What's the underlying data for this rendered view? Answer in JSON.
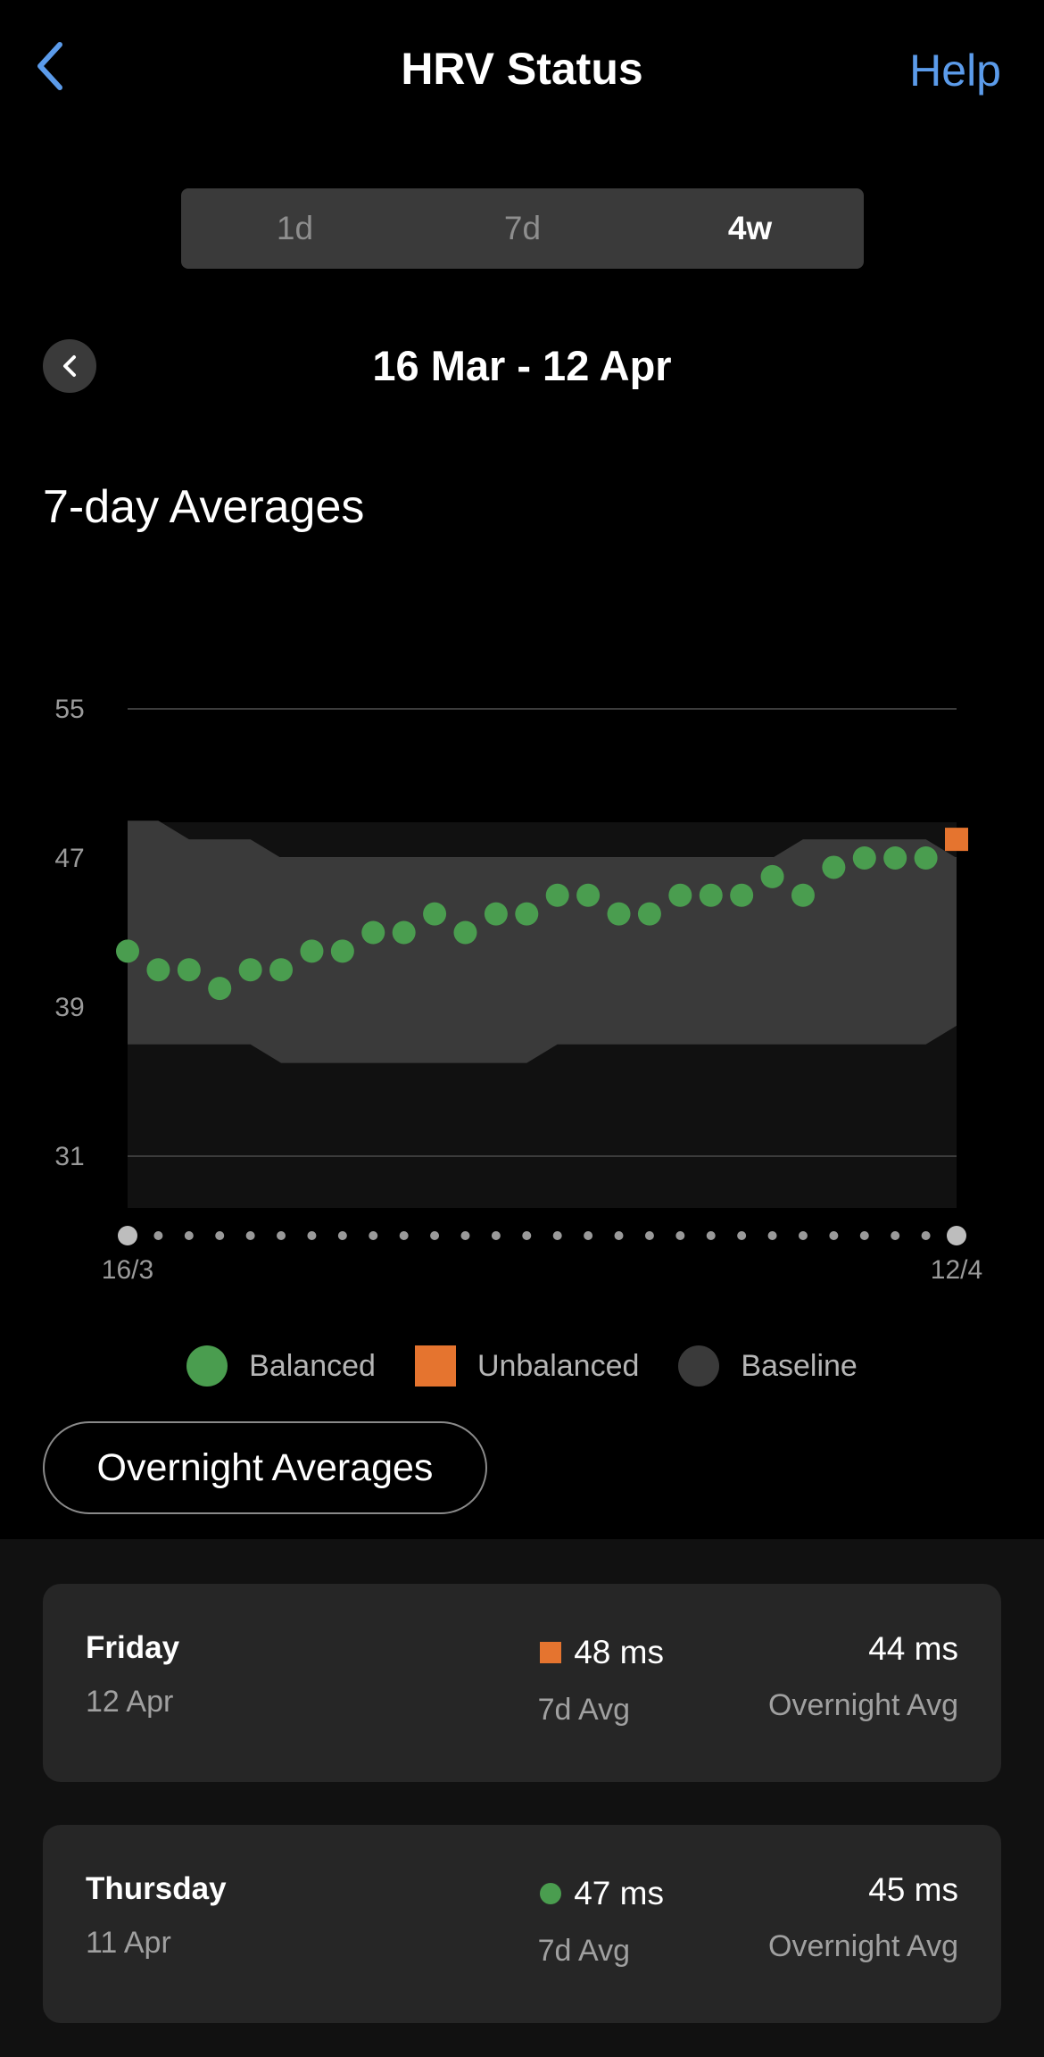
{
  "header": {
    "title": "HRV Status",
    "help_label": "Help"
  },
  "tabs": [
    {
      "label": "1d",
      "active": false
    },
    {
      "label": "7d",
      "active": false
    },
    {
      "label": "4w",
      "active": true
    }
  ],
  "date_range": "16 Mar - 12 Apr",
  "section_title": "7-day Averages",
  "chart_data": {
    "type": "scatter",
    "title": "7-day Averages",
    "y_ticks": [
      55,
      47,
      39,
      31
    ],
    "ylim": [
      28,
      55
    ],
    "x_tick_labels": [
      "16/3",
      "12/4"
    ],
    "days": 28,
    "gridlines": true,
    "values": [
      42,
      41,
      41,
      40,
      41,
      41,
      42,
      42,
      43,
      43,
      44,
      43,
      44,
      44,
      45,
      45,
      44,
      44,
      45,
      45,
      45,
      46,
      45,
      46.5,
      47,
      47,
      47,
      48
    ],
    "status": [
      "Balanced",
      "Balanced",
      "Balanced",
      "Balanced",
      "Balanced",
      "Balanced",
      "Balanced",
      "Balanced",
      "Balanced",
      "Balanced",
      "Balanced",
      "Balanced",
      "Balanced",
      "Balanced",
      "Balanced",
      "Balanced",
      "Balanced",
      "Balanced",
      "Balanced",
      "Balanced",
      "Balanced",
      "Balanced",
      "Balanced",
      "Balanced",
      "Balanced",
      "Balanced",
      "Balanced",
      "Unbalanced"
    ],
    "baseline_upper": [
      49,
      49,
      48,
      48,
      48,
      47,
      47,
      47,
      47,
      47,
      47,
      47,
      47,
      47,
      47,
      47,
      47,
      47,
      47,
      47,
      47,
      47,
      48,
      48,
      48,
      48,
      48,
      47
    ],
    "baseline_lower": [
      37,
      37,
      37,
      37,
      37,
      36,
      36,
      36,
      36,
      36,
      36,
      36,
      36,
      36,
      37,
      37,
      37,
      37,
      37,
      37,
      37,
      37,
      37,
      37,
      37,
      37,
      37,
      38
    ],
    "colors": {
      "balanced": "#4a9d4f",
      "unbalanced": "#e5742f",
      "baseline": "#3a3a3a"
    }
  },
  "legend": [
    {
      "label": "Balanced",
      "color": "#4a9d4f",
      "shape": "circle"
    },
    {
      "label": "Unbalanced",
      "color": "#e5742f",
      "shape": "square"
    },
    {
      "label": "Baseline",
      "color": "#3a3a3a",
      "shape": "circle"
    }
  ],
  "overnight_button": "Overnight Averages",
  "entries": [
    {
      "day": "Friday",
      "date": "12 Apr",
      "avg7": "48 ms",
      "avg7_label": "7d Avg",
      "status": "Unbalanced",
      "overnight": "44 ms",
      "overnight_label": "Overnight Avg"
    },
    {
      "day": "Thursday",
      "date": "11 Apr",
      "avg7": "47 ms",
      "avg7_label": "7d Avg",
      "status": "Balanced",
      "overnight": "45 ms",
      "overnight_label": "Overnight Avg"
    }
  ]
}
